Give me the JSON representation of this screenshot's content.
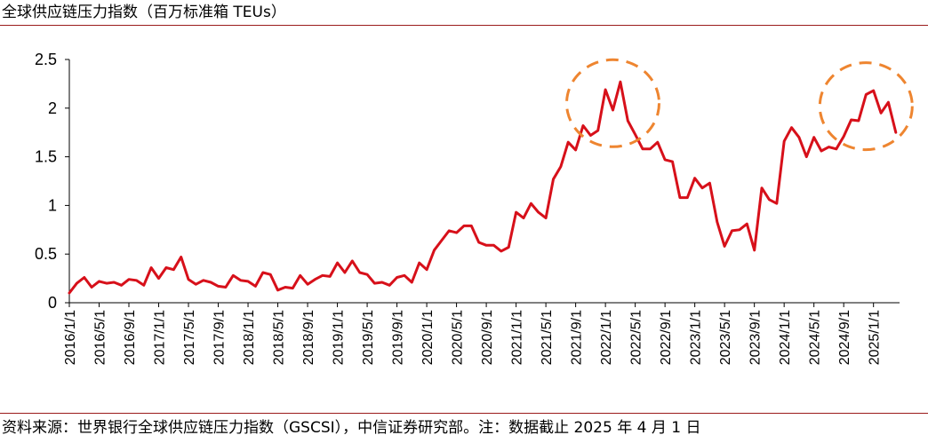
{
  "title": "全球供应链压力指数（百万标准箱 TEUs）",
  "source": "资料来源：世界银行全球供应链压力指数（GSCSI），中信证券研究部。注：数据截止 2025 年 4 月 1 日",
  "colors": {
    "line": "#d7101a",
    "highlight": "#ee8530",
    "rule": "#9b1b1b",
    "axis": "#000000"
  },
  "chart_data": {
    "type": "line",
    "title": "全球供应链压力指数（百万标准箱 TEUs）",
    "xlabel": "",
    "ylabel": "",
    "ylim": [
      0,
      2.5
    ],
    "yticks": [
      "0",
      "0.5",
      "1",
      "1.5",
      "2",
      "2.5"
    ],
    "x_start": "2016/1/1",
    "x_step_months": 1,
    "xtick_labels": [
      "2016/1/1",
      "2016/5/1",
      "2016/9/1",
      "2017/1/1",
      "2017/5/1",
      "2017/9/1",
      "2018/1/1",
      "2018/5/1",
      "2018/9/1",
      "2019/1/1",
      "2019/5/1",
      "2019/9/1",
      "2020/1/1",
      "2020/5/1",
      "2020/9/1",
      "2021/1/1",
      "2021/5/1",
      "2021/9/1",
      "2022/1/1",
      "2022/5/1",
      "2022/9/1",
      "2023/1/1",
      "2023/5/1",
      "2023/9/1",
      "2024/1/1",
      "2024/5/1",
      "2024/9/1",
      "2025/1/1"
    ],
    "xtick_every": 4,
    "series": [
      {
        "name": "全球供应链压力指数",
        "values": [
          0.1,
          0.2,
          0.26,
          0.16,
          0.22,
          0.2,
          0.21,
          0.18,
          0.24,
          0.23,
          0.18,
          0.36,
          0.25,
          0.36,
          0.34,
          0.47,
          0.24,
          0.19,
          0.23,
          0.21,
          0.17,
          0.16,
          0.28,
          0.23,
          0.22,
          0.17,
          0.31,
          0.29,
          0.13,
          0.16,
          0.15,
          0.28,
          0.19,
          0.24,
          0.28,
          0.27,
          0.41,
          0.31,
          0.43,
          0.31,
          0.29,
          0.2,
          0.21,
          0.18,
          0.26,
          0.28,
          0.21,
          0.41,
          0.34,
          0.54,
          0.64,
          0.74,
          0.72,
          0.79,
          0.79,
          0.62,
          0.59,
          0.59,
          0.53,
          0.57,
          0.93,
          0.87,
          1.02,
          0.93,
          0.87,
          1.27,
          1.4,
          1.65,
          1.57,
          1.82,
          1.72,
          1.77,
          2.19,
          1.98,
          2.27,
          1.87,
          1.73,
          1.58,
          1.58,
          1.65,
          1.47,
          1.45,
          1.08,
          1.08,
          1.28,
          1.18,
          1.23,
          0.83,
          0.58,
          0.74,
          0.75,
          0.81,
          0.54,
          1.18,
          1.06,
          1.02,
          1.66,
          1.8,
          1.7,
          1.5,
          1.7,
          1.56,
          1.6,
          1.58,
          1.71,
          1.88,
          1.87,
          2.14,
          2.18,
          1.95,
          2.06,
          1.75
        ]
      }
    ],
    "annotations": [
      {
        "type": "dashed-circle",
        "label": "",
        "center_index": 73,
        "center_value": 2.05
      },
      {
        "type": "dashed-circle",
        "label": "",
        "center_index": 107,
        "center_value": 2.02
      }
    ]
  }
}
